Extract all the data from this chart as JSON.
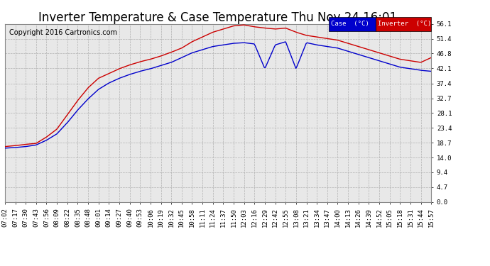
{
  "title": "Inverter Temperature & Case Temperature Thu Nov 24 16:01",
  "copyright": "Copyright 2016 Cartronics.com",
  "ylabel_ticks": [
    0.0,
    4.7,
    9.4,
    14.0,
    18.7,
    23.4,
    28.1,
    32.7,
    37.4,
    42.1,
    46.8,
    51.4,
    56.1
  ],
  "ylim": [
    0.0,
    56.1
  ],
  "background_color": "#ffffff",
  "plot_bg_color": "#e8e8e8",
  "grid_color": "#b0b0b0",
  "case_color": "#0000cc",
  "inverter_color": "#cc0000",
  "legend_case_bg": "#0000cc",
  "legend_inverter_bg": "#cc0000",
  "title_fontsize": 12,
  "copyright_fontsize": 7,
  "tick_fontsize": 6.5,
  "x_tick_labels": [
    "07:02",
    "07:17",
    "07:30",
    "07:43",
    "07:56",
    "08:09",
    "08:22",
    "08:35",
    "08:48",
    "09:01",
    "09:14",
    "09:27",
    "09:40",
    "09:53",
    "10:06",
    "10:19",
    "10:32",
    "10:45",
    "10:58",
    "11:11",
    "11:24",
    "11:37",
    "11:50",
    "12:03",
    "12:16",
    "12:29",
    "12:42",
    "12:55",
    "13:08",
    "13:21",
    "13:34",
    "13:47",
    "14:00",
    "14:13",
    "14:26",
    "14:39",
    "14:52",
    "15:05",
    "15:18",
    "15:31",
    "15:44",
    "15:57"
  ],
  "case_temps": [
    17.5,
    17.8,
    18.2,
    18.5,
    20.5,
    23.0,
    27.5,
    32.0,
    36.0,
    39.0,
    40.5,
    42.0,
    43.2,
    44.2,
    45.0,
    46.0,
    47.2,
    48.5,
    50.5,
    52.0,
    53.5,
    54.5,
    55.5,
    55.8,
    55.2,
    54.8,
    54.5,
    54.8,
    53.5,
    52.5,
    52.0,
    51.5,
    51.0,
    50.0,
    49.0,
    48.0,
    47.0,
    46.0,
    45.0,
    44.5,
    44.0,
    45.5
  ],
  "inverter_temps": [
    17.0,
    17.2,
    17.5,
    18.0,
    19.5,
    21.5,
    25.0,
    29.0,
    32.5,
    35.5,
    37.5,
    39.0,
    40.2,
    41.2,
    42.0,
    43.0,
    44.0,
    45.5,
    47.0,
    48.0,
    49.0,
    49.5,
    50.0,
    50.2,
    49.8,
    42.0,
    49.5,
    50.5,
    42.0,
    50.2,
    49.5,
    49.0,
    48.5,
    47.5,
    46.5,
    45.5,
    44.5,
    43.5,
    42.5,
    42.0,
    41.5,
    41.2
  ]
}
